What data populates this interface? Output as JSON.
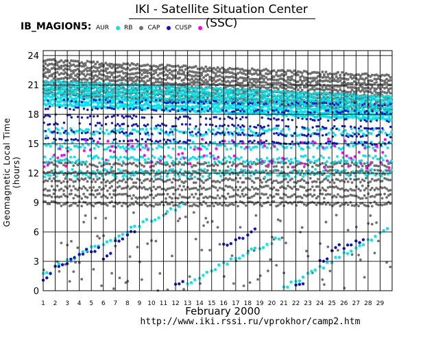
{
  "page": {
    "title": "IKI - Satellite Situation Center (SSC)",
    "satellite": "IB_MAGION5:",
    "month_label": "February   2000",
    "url": "http://www.iki.rssi.ru/vprokhor/camp2.htm"
  },
  "legend": [
    {
      "name": "AUR",
      "color": "#00e5ee"
    },
    {
      "name": "RB",
      "color": "#6e6e6e"
    },
    {
      "name": "CAP",
      "color": "#1010d0"
    },
    {
      "name": "CUSP",
      "color": "#ff00ff"
    }
  ],
  "chart_data": {
    "type": "scatter",
    "title": "IKI - Satellite Situation Center (SSC)",
    "ylabel": "Geomagnetic  Local  Time  (hours)",
    "xlabel": "February   2000",
    "x_ticks": [
      "1",
      "2",
      "3",
      "4",
      "5",
      "6",
      "7",
      "8",
      "9",
      "10",
      "11",
      "12",
      "13",
      "14",
      "15",
      "16",
      "17",
      "18",
      "19",
      "20",
      "21",
      "22",
      "23",
      "24",
      "25",
      "26",
      "27",
      "28",
      "29"
    ],
    "y_ticks": [
      "0",
      "3",
      "6",
      "9",
      "12",
      "15",
      "18",
      "21",
      "24"
    ],
    "xlim": [
      1,
      30
    ],
    "ylim": [
      0,
      24.5
    ],
    "grid": true,
    "series": [
      {
        "name": "AUR",
        "color": "#00e5ee",
        "description_bands": [
          {
            "from": 18.5,
            "to": 21.5,
            "dense": true
          },
          {
            "from": 13,
            "to": 16,
            "dense": false
          },
          {
            "from": 10,
            "to": 12.5,
            "dense": false
          }
        ],
        "low_track": [
          [
            1,
            1.6
          ],
          [
            2,
            2.4
          ],
          [
            3,
            3.0
          ],
          [
            4,
            3.6
          ],
          [
            5,
            4.3
          ],
          [
            6,
            4.9
          ],
          [
            7,
            5.5
          ],
          [
            8,
            6.1
          ],
          [
            9,
            6.7
          ],
          [
            10,
            7.2
          ],
          [
            11,
            7.8
          ],
          [
            12,
            8.4
          ],
          [
            13,
            0.8
          ],
          [
            14,
            1.4
          ],
          [
            15,
            2.1
          ],
          [
            16,
            2.7
          ],
          [
            17,
            3.3
          ],
          [
            18,
            3.9
          ],
          [
            19,
            4.4
          ],
          [
            20,
            5.0
          ],
          [
            21,
            0.3
          ],
          [
            22,
            0.9
          ],
          [
            23,
            1.6
          ],
          [
            24,
            2.3
          ],
          [
            25,
            3.0
          ],
          [
            26,
            3.7
          ],
          [
            27,
            4.4
          ],
          [
            28,
            5.1
          ],
          [
            29,
            6.0
          ]
        ]
      },
      {
        "name": "RB",
        "color": "#6e6e6e",
        "description_bands": [
          {
            "from": 20.5,
            "to": 24,
            "dense": true
          },
          {
            "from": 8,
            "to": 13,
            "dense": true
          },
          {
            "from": 0,
            "to": 8,
            "dense": false
          }
        ]
      },
      {
        "name": "CAP",
        "color": "#1010d0",
        "description_bands": [
          {
            "from": 14.5,
            "to": 19.5,
            "dense": false
          }
        ],
        "low_track": [
          [
            1,
            1.2
          ],
          [
            2,
            2.3
          ],
          [
            3,
            2.9
          ],
          [
            4,
            3.7
          ],
          [
            5,
            4.0
          ],
          [
            6,
            3.3
          ],
          [
            7,
            5.0
          ],
          [
            8,
            5.8
          ],
          [
            12,
            0.5
          ],
          [
            16,
            4.6
          ],
          [
            17,
            5.1
          ],
          [
            18,
            5.8
          ],
          [
            22,
            0.5
          ],
          [
            24,
            2.9
          ],
          [
            25,
            4.2
          ],
          [
            26,
            4.4
          ],
          [
            27,
            4.9
          ]
        ]
      },
      {
        "name": "CUSP",
        "color": "#ff00ff",
        "description_bands": [
          {
            "from": 12,
            "to": 15.5,
            "dense": false
          }
        ]
      }
    ]
  }
}
